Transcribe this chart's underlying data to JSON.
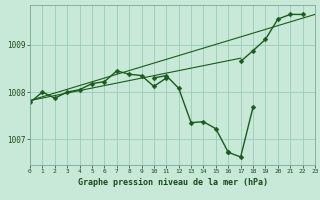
{
  "x": [
    0,
    1,
    2,
    3,
    4,
    5,
    6,
    7,
    8,
    9,
    10,
    11,
    12,
    13,
    14,
    15,
    16,
    17,
    18,
    19,
    20,
    21,
    22,
    23
  ],
  "line1": [
    1007.78,
    1008.0,
    1007.87,
    1008.0,
    1008.05,
    1008.18,
    1008.22,
    1008.45,
    1008.38,
    1008.35,
    1008.12,
    1008.3,
    null,
    null,
    null,
    null,
    null,
    null,
    null,
    null,
    null,
    null,
    null,
    null
  ],
  "line2": [
    null,
    null,
    null,
    null,
    null,
    null,
    null,
    null,
    null,
    null,
    1008.3,
    1008.35,
    1008.08,
    1007.35,
    1007.37,
    1007.22,
    1006.72,
    null,
    null,
    null,
    null,
    null,
    null,
    null
  ],
  "line3": [
    null,
    null,
    null,
    null,
    null,
    null,
    null,
    null,
    null,
    null,
    null,
    null,
    null,
    null,
    null,
    null,
    1006.72,
    1006.62,
    1007.68,
    null,
    null,
    null,
    null,
    null
  ],
  "line4": [
    null,
    null,
    null,
    null,
    null,
    null,
    null,
    null,
    null,
    null,
    null,
    null,
    null,
    null,
    null,
    null,
    null,
    1008.65,
    1008.88,
    1009.12,
    1009.55,
    1009.65,
    1009.65,
    null
  ],
  "trend1_x": [
    0,
    23
  ],
  "trend1_y": [
    1007.82,
    1009.65
  ],
  "trend2_x": [
    0,
    17
  ],
  "trend2_y": [
    1007.82,
    1008.72
  ],
  "bg_color": "#c8e8d8",
  "grid_color": "#99ccbb",
  "line_color": "#1a5c1a",
  "xlabel": "Graphe pression niveau de la mer (hPa)",
  "yticks": [
    1007,
    1008,
    1009
  ],
  "xlim": [
    0,
    23
  ],
  "ylim": [
    1006.45,
    1009.85
  ],
  "markersize": 2.5,
  "linewidth": 1.0
}
